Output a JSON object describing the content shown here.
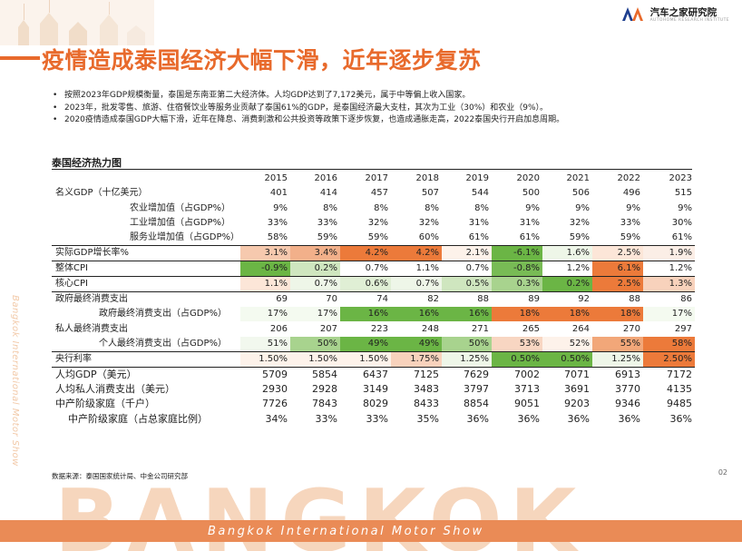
{
  "logo": {
    "name": "汽车之家研究院",
    "sub": "AUTOHOME RESEARCH INSTITUTE"
  },
  "title": "疫情造成泰国经济大幅下滑，近年逐步复苏",
  "bullets": [
    "按照2023年GDP规模衡量，泰国是东南亚第二大经济体。人均GDP达到了7,172美元，属于中等偏上收入国家。",
    "2023年，批发零售、旅游、住宿餐饮业等服务业贡献了泰国61%的GDP，是泰国经济最大支柱，其次为工业（30%）和农业（9%）。",
    "2020疫情造成泰国GDP大幅下滑，近年在降息、消费刺激和公共投资等政策下逐步恢复，也造成通胀走高，2022泰国央行开启加息周期。"
  ],
  "side_text": "Bangkok International Motor Show",
  "section_title": "泰国经济热力图",
  "years": [
    "2015",
    "2016",
    "2017",
    "2018",
    "2019",
    "2020",
    "2021",
    "2022",
    "2023"
  ],
  "rows": [
    {
      "label": "名义GDP（十亿美元）",
      "indent": "",
      "values": [
        "401",
        "414",
        "457",
        "507",
        "544",
        "500",
        "506",
        "496",
        "515"
      ],
      "colors": [
        "",
        "",
        "",
        "",
        "",
        "",
        "",
        "",
        ""
      ]
    },
    {
      "label": "农业增加值（占GDP%）",
      "indent": "ind1",
      "values": [
        "9%",
        "8%",
        "8%",
        "8%",
        "8%",
        "9%",
        "9%",
        "9%",
        "9%"
      ],
      "colors": [
        "",
        "",
        "",
        "",
        "",
        "",
        "",
        "",
        ""
      ]
    },
    {
      "label": "工业增加值（占GDP%）",
      "indent": "ind1",
      "values": [
        "33%",
        "33%",
        "32%",
        "32%",
        "31%",
        "31%",
        "32%",
        "33%",
        "30%"
      ],
      "colors": [
        "",
        "",
        "",
        "",
        "",
        "",
        "",
        "",
        ""
      ]
    },
    {
      "label": "服务业增加值（占GDP%）",
      "indent": "ind1",
      "values": [
        "58%",
        "59%",
        "59%",
        "60%",
        "61%",
        "61%",
        "59%",
        "59%",
        "61%"
      ],
      "colors": [
        "",
        "",
        "",
        "",
        "",
        "",
        "",
        "",
        ""
      ]
    },
    {
      "label": "实际GDP增长率%",
      "indent": "",
      "sep": true,
      "values": [
        "3.1%",
        "3.4%",
        "4.2%",
        "4.2%",
        "2.1%",
        "-6.1%",
        "1.6%",
        "2.5%",
        "1.9%"
      ],
      "colors": [
        "#f6c9ae",
        "#f2b08a",
        "#ec7a3a",
        "#ec7a3a",
        "#fdf2ea",
        "#6bb545",
        "#eef6e8",
        "#fce6d8",
        "#fbeee6"
      ]
    },
    {
      "label": "整体CPI",
      "indent": "",
      "sep": true,
      "values": [
        "-0.9%",
        "0.2%",
        "0.7%",
        "1.1%",
        "0.7%",
        "-0.8%",
        "1.2%",
        "6.1%",
        "1.2%"
      ],
      "colors": [
        "#6bb545",
        "#cfe6bf",
        "#ffffff",
        "#ffffff",
        "#ffffff",
        "#78bb55",
        "#ffffff",
        "#ec7a3a",
        "#ffffff"
      ]
    },
    {
      "label": "核心CPI",
      "indent": "",
      "sep": true,
      "values": [
        "1.1%",
        "0.7%",
        "0.6%",
        "0.7%",
        "0.5%",
        "0.3%",
        "0.2%",
        "2.5%",
        "1.3%"
      ],
      "colors": [
        "#fce6d8",
        "#eef6e8",
        "#e0efd5",
        "#eef6e8",
        "#cfe6bf",
        "#a8d38e",
        "#6bb545",
        "#ec7a3a",
        "#f8d2bc"
      ]
    },
    {
      "label": "政府最终消费支出",
      "indent": "",
      "sep": true,
      "values": [
        "69",
        "70",
        "74",
        "82",
        "88",
        "89",
        "92",
        "88",
        "86"
      ],
      "colors": [
        "",
        "",
        "",
        "",
        "",
        "",
        "",
        "",
        ""
      ]
    },
    {
      "label": "政府最终消费支出（占GDP%）",
      "indent": "ind2",
      "values": [
        "17%",
        "17%",
        "16%",
        "16%",
        "16%",
        "18%",
        "18%",
        "18%",
        "17%"
      ],
      "colors": [
        "#f4faf0",
        "#f4faf0",
        "#6bb545",
        "#6bb545",
        "#6bb545",
        "#ec7a3a",
        "#ec7a3a",
        "#ec7a3a",
        "#f4faf0"
      ]
    },
    {
      "label": "私人最终消费支出",
      "indent": "",
      "values": [
        "206",
        "207",
        "223",
        "248",
        "271",
        "265",
        "264",
        "270",
        "297"
      ],
      "colors": [
        "",
        "",
        "",
        "",
        "",
        "",
        "",
        "",
        ""
      ]
    },
    {
      "label": "个人最终消费支出（占GDP%）",
      "indent": "ind2",
      "values": [
        "51%",
        "50%",
        "49%",
        "49%",
        "50%",
        "53%",
        "52%",
        "55%",
        "58%"
      ],
      "colors": [
        "#f2f8ee",
        "#a8d38e",
        "#6bb545",
        "#6bb545",
        "#a8d38e",
        "#f8d6c2",
        "#fdf2ea",
        "#f2a779",
        "#ec7a3a"
      ]
    },
    {
      "label": "央行利率",
      "indent": "",
      "sep": true,
      "values": [
        "1.50%",
        "1.50%",
        "1.50%",
        "1.75%",
        "1.25%",
        "0.50%",
        "0.50%",
        "1.25%",
        "2.50%"
      ],
      "colors": [
        "#fdf2ea",
        "#fdf2ea",
        "#fdf2ea",
        "#f8d2bc",
        "#eef6e8",
        "#6bb545",
        "#6bb545",
        "#eef6e8",
        "#ec7a3a"
      ]
    },
    {
      "label": "人均GDP（美元）",
      "indent": "",
      "big": true,
      "sep": true,
      "values": [
        "5709",
        "5854",
        "6437",
        "7125",
        "7629",
        "7002",
        "7071",
        "6913",
        "7172"
      ],
      "colors": [
        "",
        "",
        "",
        "",
        "",
        "",
        "",
        "",
        ""
      ]
    },
    {
      "label": "人均私人消费支出（美元）",
      "indent": "",
      "big": true,
      "values": [
        "2930",
        "2928",
        "3149",
        "3483",
        "3797",
        "3713",
        "3691",
        "3770",
        "4135"
      ],
      "colors": [
        "",
        "",
        "",
        "",
        "",
        "",
        "",
        "",
        ""
      ]
    },
    {
      "label": "中产阶级家庭（千户）",
      "indent": "",
      "big": true,
      "values": [
        "7726",
        "7843",
        "8029",
        "8433",
        "8854",
        "9051",
        "9203",
        "9346",
        "9485"
      ],
      "colors": [
        "",
        "",
        "",
        "",
        "",
        "",
        "",
        "",
        ""
      ]
    },
    {
      "label": "中产阶级家庭（占总家庭比例）",
      "indent": "ind3b",
      "big": true,
      "values": [
        "34%",
        "33%",
        "33%",
        "35%",
        "36%",
        "36%",
        "36%",
        "36%",
        "36%"
      ],
      "colors": [
        "",
        "",
        "",
        "",
        "",
        "",
        "",
        "",
        ""
      ]
    }
  ],
  "source": "数据来源：泰国国家统计局、中金公司研究部",
  "page_number": "02",
  "bottom_big_text": "BANGKOK",
  "bottom_strip_text": "Bangkok International Motor Show"
}
